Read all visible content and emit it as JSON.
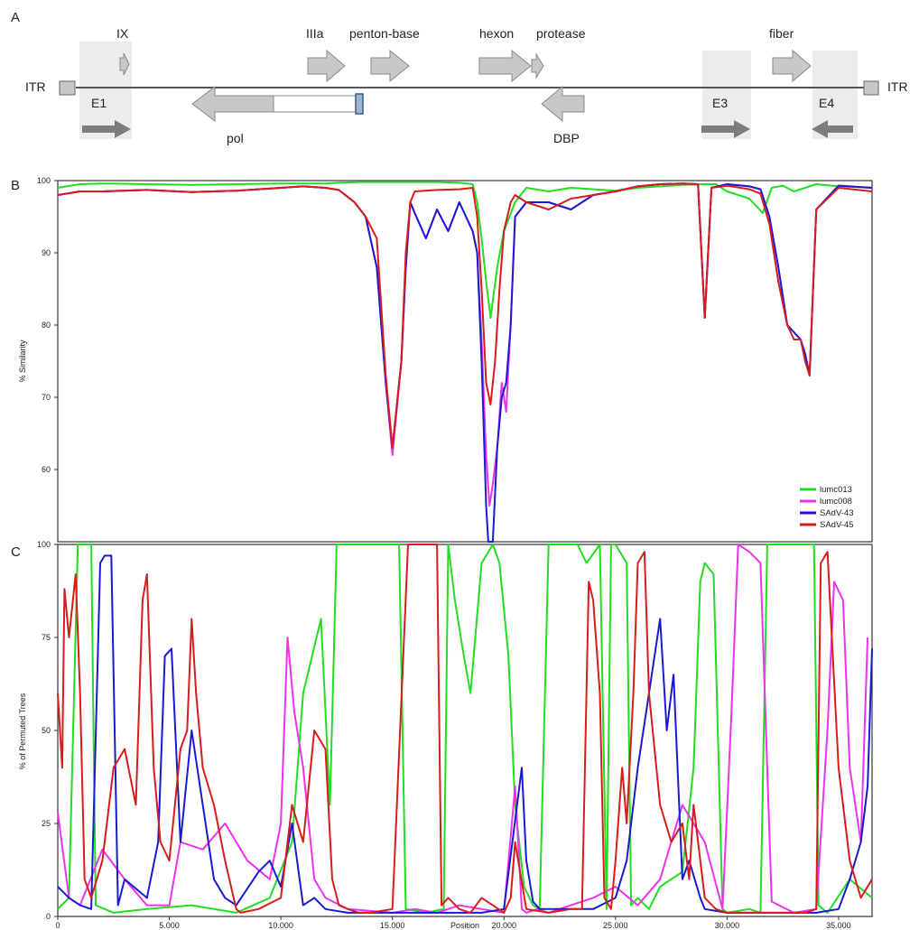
{
  "panels": {
    "a": "A",
    "b": "B",
    "c": "C"
  },
  "colors": {
    "lumc013": "#22dd22",
    "lumc008": "#ee33ee",
    "sadv43": "#1a1ad0",
    "sadv45": "#d81c1c",
    "gene": "#c8c8c8",
    "gene_stroke": "#8a8a8a",
    "shade": "#ececec",
    "dark_arrow": "#7d7d7d"
  },
  "genome_map": {
    "itr_left": "ITR",
    "itr_right": "ITR",
    "genes_forward": [
      "IX",
      "IIIa",
      "penton-base",
      "hexon",
      "protease",
      "fiber"
    ],
    "genes_reverse": [
      "pol",
      "DBP"
    ],
    "regions": [
      "E1",
      "E3",
      "E4"
    ]
  },
  "chart_data": [
    {
      "type": "line",
      "panel": "B",
      "ylabel": "% Similarity",
      "ylim": [
        50,
        100
      ],
      "xlim": [
        0,
        36500
      ],
      "yticks": [
        "60",
        "70",
        "80",
        "90",
        "100"
      ],
      "legend": [
        "lumc013",
        "lumc008",
        "SAdV-43",
        "SAdV-45"
      ],
      "legend_position": "bottom-right",
      "series": [
        {
          "name": "lumc013",
          "x": [
            0,
            1000,
            2000,
            4000,
            6000,
            8000,
            10000,
            12000,
            12600,
            13500,
            14500,
            15000,
            16000,
            17000,
            18000,
            18600,
            18800,
            19000,
            19200,
            19400,
            19700,
            20000,
            20500,
            21000,
            22000,
            23000,
            24000,
            25000,
            26000,
            27000,
            28000,
            29000,
            29500,
            30000,
            31000,
            31600,
            32000,
            32500,
            33000,
            34000,
            35000,
            36500
          ],
          "y": [
            99,
            99.5,
            99.6,
            99.5,
            99.4,
            99.5,
            99.6,
            99.6,
            99.7,
            99.8,
            99.8,
            99.8,
            99.8,
            99.8,
            99.7,
            99.5,
            97,
            92,
            86,
            81,
            88,
            93,
            97,
            99,
            98.5,
            99,
            98.8,
            98.6,
            99,
            99.2,
            99.4,
            99.5,
            99.5,
            98.5,
            97.5,
            95.5,
            99,
            99.3,
            98.5,
            99.5,
            99.2,
            99
          ]
        },
        {
          "name": "lumc008",
          "x": [
            0,
            1000,
            2000,
            4000,
            6000,
            8000,
            10000,
            11000,
            12000,
            12600,
            13300,
            13800,
            14300,
            14700,
            15000,
            15400,
            15600,
            15800,
            16000,
            16500,
            17000,
            17500,
            18000,
            18600,
            18800,
            19000,
            19200,
            19350,
            19500,
            19700,
            19900,
            20100,
            20300,
            20500,
            21000,
            22000,
            23000,
            24000,
            25000,
            26000,
            27000,
            28000,
            28700,
            29000,
            29300,
            30000,
            31000,
            31500,
            31900,
            32300,
            32700,
            33000,
            33300,
            33500,
            33700,
            34000,
            35000,
            36500
          ],
          "y": [
            98,
            98.5,
            98.5,
            98.7,
            98.4,
            98.6,
            99,
            99.2,
            99,
            98.7,
            97,
            95,
            88,
            72,
            62,
            75,
            88,
            97,
            95.5,
            92,
            96,
            93,
            97,
            93,
            90,
            78,
            62,
            55,
            58,
            63,
            72,
            68,
            80,
            95,
            97,
            97,
            96,
            98,
            98.5,
            99.2,
            99.5,
            99.6,
            99.5,
            81,
            99,
            99.5,
            99.2,
            98.8,
            95,
            88,
            80,
            79,
            78,
            76,
            73,
            96,
            99.3,
            99
          ]
        },
        {
          "name": "SAdV-43",
          "x": [
            0,
            1000,
            2000,
            4000,
            6000,
            8000,
            10000,
            11000,
            12000,
            12600,
            13300,
            13800,
            14300,
            14700,
            15000,
            15400,
            15600,
            15800,
            16000,
            16500,
            17000,
            17500,
            18000,
            18600,
            18800,
            19000,
            19200,
            19300,
            19400,
            19500,
            19700,
            19900,
            20100,
            20300,
            20500,
            21000,
            22000,
            23000,
            24000,
            25000,
            26000,
            27000,
            28000,
            28700,
            29000,
            29300,
            30000,
            31000,
            31500,
            31900,
            32300,
            32700,
            33000,
            33300,
            33500,
            33700,
            34000,
            35000,
            36500
          ],
          "y": [
            98,
            98.5,
            98.5,
            98.7,
            98.4,
            98.6,
            99,
            99.2,
            99,
            98.7,
            97,
            95,
            88,
            72,
            63,
            75,
            88,
            97,
            95.5,
            92,
            96,
            93,
            97,
            93,
            90,
            75,
            55,
            45,
            35,
            45,
            63,
            70,
            72,
            80,
            95,
            97,
            97,
            96,
            98,
            98.5,
            99.2,
            99.5,
            99.6,
            99.5,
            81,
            99,
            99.5,
            99.2,
            98.8,
            95,
            88,
            80,
            79,
            78,
            76,
            73,
            96,
            99.3,
            99
          ]
        },
        {
          "name": "SAdV-45",
          "x": [
            0,
            1000,
            2000,
            4000,
            6000,
            8000,
            10000,
            11000,
            12000,
            12600,
            13300,
            13800,
            14300,
            14700,
            15000,
            15400,
            15600,
            15800,
            16000,
            17000,
            18000,
            18600,
            18800,
            19000,
            19200,
            19400,
            19600,
            19800,
            20000,
            20300,
            20500,
            21000,
            22000,
            23000,
            24000,
            25000,
            26000,
            27000,
            28000,
            28700,
            29000,
            29300,
            30000,
            31000,
            31500,
            31900,
            32300,
            32700,
            33000,
            33300,
            33500,
            33700,
            34000,
            35000,
            36500
          ],
          "y": [
            98,
            98.5,
            98.5,
            98.7,
            98.4,
            98.6,
            99,
            99.2,
            99,
            98.7,
            97,
            95,
            92,
            73,
            63,
            75,
            90,
            97,
            98.5,
            98.7,
            98.8,
            99,
            95,
            85,
            72,
            69,
            75,
            85,
            93,
            97,
            98,
            97,
            96,
            97.5,
            98,
            98.5,
            99.2,
            99.5,
            99.6,
            99.5,
            81,
            99,
            99.3,
            98.8,
            98.2,
            94,
            86,
            80,
            78,
            78,
            75,
            73,
            96,
            99,
            98.5
          ]
        }
      ]
    },
    {
      "type": "line",
      "panel": "C",
      "ylabel": "% of Permuted Trees",
      "xlabel": "Position",
      "ylim": [
        0,
        100
      ],
      "xlim": [
        0,
        36500
      ],
      "yticks": [
        "0",
        "25",
        "50",
        "75",
        "100"
      ],
      "xticks": [
        "0",
        "5.000",
        "10.000",
        "15.000",
        "20.000",
        "25.000",
        "30.000",
        "35.000"
      ],
      "xtick_values": [
        0,
        5000,
        10000,
        15000,
        20000,
        25000,
        30000,
        35000
      ],
      "series": [
        {
          "name": "lumc013",
          "x": [
            0,
            500,
            900,
            1100,
            1500,
            1700,
            2500,
            4000,
            6000,
            8000,
            9500,
            10500,
            11000,
            11800,
            12200,
            12500,
            12700,
            13000,
            15000,
            15300,
            15600,
            16500,
            17300,
            17500,
            17800,
            18200,
            18500,
            19000,
            19500,
            19800,
            20200,
            20500,
            20900,
            21300,
            21600,
            22000,
            23300,
            23700,
            24300,
            24600,
            24800,
            25000,
            25500,
            25700,
            26000,
            26500,
            27000,
            28000,
            28500,
            28800,
            29000,
            29400,
            29800,
            30000,
            31000,
            31500,
            31800,
            32000,
            33900,
            34100,
            34500,
            35500,
            36500
          ],
          "y": [
            2,
            5,
            100,
            100,
            100,
            3,
            1,
            2,
            3,
            1,
            5,
            20,
            60,
            80,
            30,
            100,
            100,
            100,
            100,
            100,
            2,
            1,
            2,
            100,
            85,
            70,
            60,
            95,
            100,
            95,
            70,
            30,
            8,
            3,
            2,
            100,
            100,
            95,
            100,
            2,
            100,
            100,
            95,
            3,
            5,
            2,
            8,
            12,
            40,
            90,
            95,
            92,
            2,
            1,
            2,
            1,
            100,
            100,
            100,
            3,
            1,
            10,
            5
          ]
        },
        {
          "name": "lumc008",
          "x": [
            0,
            500,
            1000,
            2000,
            3000,
            4000,
            5000,
            5500,
            6500,
            7500,
            8500,
            9500,
            10000,
            10300,
            10600,
            11000,
            11500,
            12000,
            13000,
            15000,
            16000,
            17000,
            18000,
            19000,
            20000,
            20500,
            20800,
            21000,
            21500,
            22000,
            23000,
            24000,
            25000,
            26000,
            27000,
            28000,
            29000,
            29800,
            30200,
            30500,
            31000,
            31500,
            32000,
            33000,
            34000,
            34500,
            34800,
            35200,
            35500,
            36000,
            36300
          ],
          "y": [
            28,
            5,
            3,
            18,
            10,
            3,
            3,
            20,
            18,
            25,
            15,
            10,
            25,
            75,
            55,
            40,
            10,
            5,
            2,
            1,
            2,
            1,
            3,
            2,
            1,
            35,
            2,
            1,
            2,
            1,
            3,
            5,
            8,
            3,
            10,
            30,
            20,
            2,
            55,
            100,
            98,
            95,
            4,
            1,
            2,
            50,
            90,
            85,
            40,
            20,
            75
          ]
        },
        {
          "name": "SAdV-43",
          "x": [
            0,
            500,
            1000,
            1500,
            1900,
            2100,
            2400,
            2700,
            3000,
            4000,
            4500,
            4800,
            5100,
            5500,
            6000,
            6500,
            7000,
            7500,
            8000,
            9000,
            9500,
            10000,
            10500,
            11000,
            11500,
            12000,
            13000,
            15000,
            17000,
            19000,
            20000,
            20800,
            21000,
            21300,
            21600,
            22000,
            24000,
            25000,
            25500,
            26000,
            26500,
            27000,
            27300,
            27600,
            28000,
            28300,
            28800,
            29000,
            30000,
            32000,
            34000,
            35000,
            35500,
            36000,
            36300,
            36500
          ],
          "y": [
            8,
            5,
            3,
            2,
            95,
            97,
            97,
            3,
            10,
            5,
            20,
            70,
            72,
            20,
            50,
            30,
            10,
            5,
            3,
            12,
            15,
            8,
            25,
            3,
            5,
            2,
            1,
            1,
            1,
            1,
            2,
            40,
            15,
            4,
            2,
            2,
            2,
            5,
            15,
            40,
            60,
            80,
            50,
            65,
            10,
            15,
            5,
            2,
            1,
            1,
            1,
            2,
            10,
            20,
            35,
            72
          ]
        },
        {
          "name": "SAdV-45",
          "x": [
            0,
            200,
            300,
            500,
            800,
            1000,
            1200,
            1500,
            2000,
            2500,
            3000,
            3500,
            3800,
            4000,
            4300,
            4600,
            5000,
            5500,
            5800,
            6000,
            6200,
            6500,
            7000,
            7500,
            8000,
            8200,
            9000,
            10000,
            10200,
            10500,
            11000,
            11500,
            12000,
            12300,
            12600,
            13000,
            13500,
            14000,
            15000,
            15700,
            16000,
            16500,
            17000,
            17200,
            17500,
            18000,
            18500,
            19000,
            19500,
            20000,
            20300,
            20500,
            21000,
            22000,
            23000,
            23500,
            23800,
            24000,
            24300,
            24500,
            24800,
            25000,
            25300,
            25500,
            25800,
            26000,
            26300,
            26500,
            27000,
            27500,
            28000,
            28300,
            28500,
            29000,
            29500,
            30000,
            31000,
            32000,
            33000,
            33500,
            34000,
            34200,
            34500,
            35000,
            35500,
            36000,
            36500
          ],
          "y": [
            60,
            40,
            88,
            75,
            92,
            60,
            10,
            5,
            15,
            40,
            45,
            30,
            85,
            92,
            40,
            20,
            15,
            45,
            50,
            80,
            60,
            40,
            30,
            15,
            2,
            1,
            2,
            5,
            15,
            30,
            20,
            50,
            45,
            10,
            3,
            2,
            1,
            1,
            2,
            100,
            100,
            100,
            100,
            3,
            5,
            2,
            1,
            5,
            3,
            1,
            5,
            20,
            2,
            1,
            2,
            2,
            90,
            85,
            60,
            5,
            2,
            15,
            40,
            25,
            60,
            95,
            98,
            60,
            30,
            20,
            25,
            10,
            30,
            5,
            2,
            1,
            1,
            1,
            1,
            1,
            2,
            95,
            98,
            40,
            15,
            5,
            10
          ]
        }
      ]
    }
  ]
}
